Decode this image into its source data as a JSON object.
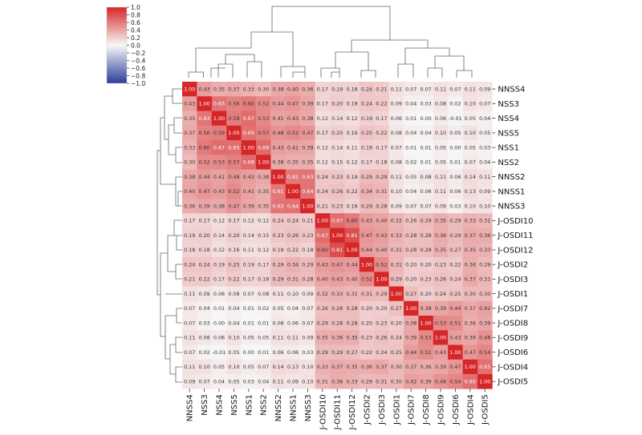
{
  "chart_data": {
    "type": "heatmap",
    "title": "",
    "labels": [
      "NNSS4",
      "NSS3",
      "NSS4",
      "NSS5",
      "NSS1",
      "NSS2",
      "NNSS2",
      "NNSS1",
      "NNSS3",
      "J-OSDI10",
      "J-OSDI11",
      "J-OSDI12",
      "J-OSDI2",
      "J-OSDI3",
      "J-OSDI1",
      "J-OSDI7",
      "J-OSDI8",
      "J-OSDI9",
      "J-OSDI6",
      "J-OSDI4",
      "J-OSDI5"
    ],
    "matrix": [
      [
        "1.00",
        "0.43",
        "0.35",
        "0.37",
        "0.33",
        "0.30",
        "0.38",
        "0.40",
        "0.36",
        "0.17",
        "0.19",
        "0.18",
        "0.24",
        "0.21",
        "0.11",
        "0.07",
        "0.07",
        "0.11",
        "0.07",
        "0.11",
        "0.09"
      ],
      [
        "0.43",
        "1.00",
        "0.63",
        "0.56",
        "0.60",
        "0.52",
        "0.44",
        "0.47",
        "0.39",
        "0.17",
        "0.20",
        "0.18",
        "0.24",
        "0.22",
        "0.09",
        "0.04",
        "0.03",
        "0.08",
        "0.02",
        "0.10",
        "0.07"
      ],
      [
        "0.35",
        "0.63",
        "1.00",
        "0.59",
        "0.67",
        "0.53",
        "0.41",
        "0.43",
        "0.38",
        "0.12",
        "0.14",
        "0.12",
        "0.19",
        "0.17",
        "0.06",
        "0.01",
        "0.00",
        "0.06",
        "-0.01",
        "0.05",
        "0.04"
      ],
      [
        "0.37",
        "0.56",
        "0.59",
        "1.00",
        "0.65",
        "0.57",
        "0.48",
        "0.52",
        "0.47",
        "0.17",
        "0.20",
        "0.16",
        "0.25",
        "0.22",
        "0.08",
        "0.04",
        "0.04",
        "0.10",
        "0.05",
        "0.10",
        "0.05"
      ],
      [
        "0.33",
        "0.60",
        "0.67",
        "0.65",
        "1.00",
        "0.68",
        "0.43",
        "0.41",
        "0.39",
        "0.12",
        "0.14",
        "0.11",
        "0.19",
        "0.17",
        "0.07",
        "0.01",
        "0.01",
        "0.05",
        "0.00",
        "0.05",
        "0.03"
      ],
      [
        "0.30",
        "0.52",
        "0.53",
        "0.57",
        "0.68",
        "1.00",
        "0.38",
        "0.35",
        "0.35",
        "0.12",
        "0.15",
        "0.12",
        "0.17",
        "0.18",
        "0.08",
        "0.02",
        "0.01",
        "0.05",
        "0.01",
        "0.07",
        "0.04"
      ],
      [
        "0.38",
        "0.44",
        "0.41",
        "0.48",
        "0.43",
        "0.38",
        "1.00",
        "0.61",
        "0.63",
        "0.24",
        "0.23",
        "0.19",
        "0.29",
        "0.29",
        "0.11",
        "0.05",
        "0.08",
        "0.11",
        "0.06",
        "0.14",
        "0.11"
      ],
      [
        "0.40",
        "0.47",
        "0.43",
        "0.52",
        "0.41",
        "0.35",
        "0.61",
        "1.00",
        "0.64",
        "0.24",
        "0.26",
        "0.22",
        "0.34",
        "0.31",
        "0.10",
        "0.04",
        "0.06",
        "0.11",
        "0.06",
        "0.13",
        "0.09"
      ],
      [
        "0.36",
        "0.39",
        "0.38",
        "0.47",
        "0.39",
        "0.35",
        "0.63",
        "0.64",
        "1.00",
        "0.21",
        "0.23",
        "0.18",
        "0.29",
        "0.28",
        "0.09",
        "0.07",
        "0.07",
        "0.09",
        "0.03",
        "0.10",
        "0.10"
      ],
      [
        "0.17",
        "0.17",
        "0.12",
        "0.17",
        "0.12",
        "0.12",
        "0.24",
        "0.24",
        "0.21",
        "1.00",
        "0.67",
        "0.60",
        "0.43",
        "0.40",
        "0.32",
        "0.26",
        "0.29",
        "0.35",
        "0.29",
        "0.33",
        "0.31"
      ],
      [
        "0.19",
        "0.20",
        "0.14",
        "0.20",
        "0.14",
        "0.15",
        "0.23",
        "0.26",
        "0.23",
        "0.67",
        "1.00",
        "0.81",
        "0.47",
        "0.43",
        "0.33",
        "0.28",
        "0.28",
        "0.36",
        "0.29",
        "0.37",
        "0.36"
      ],
      [
        "0.18",
        "0.18",
        "0.12",
        "0.16",
        "0.11",
        "0.12",
        "0.19",
        "0.22",
        "0.18",
        "0.60",
        "0.81",
        "1.00",
        "0.44",
        "0.40",
        "0.31",
        "0.28",
        "0.28",
        "0.35",
        "0.27",
        "0.35",
        "0.33"
      ],
      [
        "0.24",
        "0.24",
        "0.19",
        "0.25",
        "0.19",
        "0.17",
        "0.29",
        "0.34",
        "0.29",
        "0.43",
        "0.47",
        "0.44",
        "1.00",
        "0.52",
        "0.31",
        "0.20",
        "0.20",
        "0.23",
        "0.22",
        "0.36",
        "0.29"
      ],
      [
        "0.21",
        "0.22",
        "0.17",
        "0.22",
        "0.17",
        "0.18",
        "0.29",
        "0.31",
        "0.28",
        "0.40",
        "0.43",
        "0.40",
        "0.52",
        "1.00",
        "0.29",
        "0.20",
        "0.23",
        "0.26",
        "0.24",
        "0.37",
        "0.31"
      ],
      [
        "0.11",
        "0.09",
        "0.06",
        "0.08",
        "0.07",
        "0.08",
        "0.11",
        "0.10",
        "0.09",
        "0.32",
        "0.33",
        "0.31",
        "0.31",
        "0.29",
        "1.00",
        "0.27",
        "0.20",
        "0.24",
        "0.25",
        "0.30",
        "0.30"
      ],
      [
        "0.07",
        "0.04",
        "0.01",
        "0.04",
        "0.01",
        "0.02",
        "0.05",
        "0.04",
        "0.07",
        "0.26",
        "0.28",
        "0.28",
        "0.20",
        "0.20",
        "0.27",
        "1.00",
        "0.38",
        "0.39",
        "0.44",
        "0.37",
        "0.42"
      ],
      [
        "0.07",
        "0.03",
        "0.00",
        "0.04",
        "0.01",
        "0.01",
        "0.08",
        "0.06",
        "0.07",
        "0.29",
        "0.28",
        "0.28",
        "0.20",
        "0.23",
        "0.20",
        "0.38",
        "1.00",
        "0.53",
        "0.51",
        "0.36",
        "0.39"
      ],
      [
        "0.11",
        "0.08",
        "0.06",
        "0.10",
        "0.05",
        "0.05",
        "0.11",
        "0.11",
        "0.09",
        "0.35",
        "0.36",
        "0.35",
        "0.23",
        "0.26",
        "0.24",
        "0.39",
        "0.53",
        "1.00",
        "0.43",
        "0.39",
        "0.48"
      ],
      [
        "0.07",
        "0.02",
        "-0.01",
        "0.05",
        "0.00",
        "0.01",
        "0.06",
        "0.06",
        "0.03",
        "0.29",
        "0.29",
        "0.27",
        "0.22",
        "0.24",
        "0.25",
        "0.44",
        "0.51",
        "0.43",
        "1.00",
        "0.47",
        "0.54"
      ],
      [
        "0.11",
        "0.10",
        "0.05",
        "0.10",
        "0.05",
        "0.07",
        "0.14",
        "0.13",
        "0.10",
        "0.33",
        "0.37",
        "0.35",
        "0.36",
        "0.37",
        "0.30",
        "0.37",
        "0.36",
        "0.39",
        "0.47",
        "1.00",
        "0.65"
      ],
      [
        "0.09",
        "0.07",
        "0.04",
        "0.05",
        "0.03",
        "0.04",
        "0.11",
        "0.09",
        "0.10",
        "0.31",
        "0.36",
        "0.33",
        "0.29",
        "0.31",
        "0.30",
        "0.42",
        "0.39",
        "0.48",
        "0.54",
        "0.65",
        "1.00"
      ]
    ],
    "colorbar": {
      "range": [
        -1.0,
        1.0
      ],
      "ticks": [
        "1.0",
        "0.8",
        "0.6",
        "0.4",
        "0.2",
        "0.0",
        "−0.2",
        "−0.4",
        "−0.6",
        "−0.8",
        "−1.0"
      ],
      "colors": {
        "high": "#d62728",
        "mid": "#f7f7f7",
        "low": "#2d3c99"
      }
    },
    "dendrogram": "hierarchical clustering on rows (left) and columns (top)"
  }
}
